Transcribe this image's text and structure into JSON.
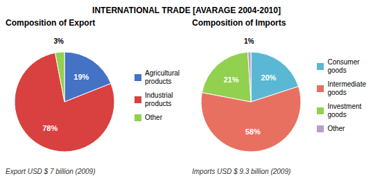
{
  "title": "INTERNATIONAL TRADE  [AVARAGE 2004-2010]",
  "chart_data": [
    {
      "type": "pie",
      "title": "Composition of Export",
      "categories": [
        "Agricultural\nproducts",
        "Industrial\nproducts",
        "Other"
      ],
      "values": [
        19,
        78,
        3
      ],
      "value_labels": [
        "19%",
        "78%",
        "3%"
      ],
      "colors": [
        "#4472c4",
        "#d94040",
        "#92d050"
      ],
      "data_labels": true,
      "legend": "right",
      "annotations": [
        "Export USD $ 7 billion (2009)"
      ]
    },
    {
      "type": "pie",
      "title": "Composition of Imports",
      "categories": [
        "Consumer\ngoods",
        "Intermediate\ngoods",
        "Investment\ngoods",
        "Other"
      ],
      "values": [
        20,
        58,
        21,
        1
      ],
      "value_labels": [
        "20%",
        "58%",
        "21%",
        "1%"
      ],
      "colors": [
        "#5bb8d4",
        "#e87060",
        "#92d050",
        "#b8a0c8"
      ],
      "data_labels": true,
      "legend": "right",
      "annotations": [
        "Imports USD $ 9.3 billion (2009)"
      ]
    }
  ]
}
